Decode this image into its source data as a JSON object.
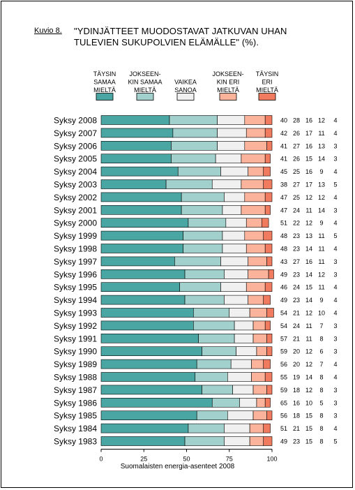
{
  "figure": {
    "label": "Kuvio 8.",
    "title": "\"YDINJÄTTEET MUODOSTAVAT JATKUVAN UHAN\nTULEVIEN SUKUPOLVIEN ELÄMÄLLE\" (%).",
    "source": "Suomalaisten energia-asenteet 2008"
  },
  "chart_data": {
    "type": "bar",
    "orientation": "horizontal",
    "stacked": true,
    "categories": [
      "Syksy 2008",
      "Syksy 2007",
      "Syksy 2006",
      "Syksy 2005",
      "Syksy 2004",
      "Syksy 2003",
      "Syksy 2002",
      "Syksy 2001",
      "Syksy 2000",
      "Syksy 1999",
      "Syksy 1998",
      "Syksy 1997",
      "Syksy 1996",
      "Syksy 1995",
      "Syksy 1994",
      "Syksy 1993",
      "Syksy 1992",
      "Syksy 1991",
      "Syksy 1990",
      "Syksy 1989",
      "Syksy 1988",
      "Syksy 1987",
      "Syksy 1986",
      "Syksy 1985",
      "Syksy 1984",
      "Syksy 1983"
    ],
    "series": [
      {
        "name": "TÄYSIN SAMAA MIELTÄ",
        "color": "#4aa6a3",
        "values": [
          40,
          42,
          41,
          41,
          45,
          38,
          47,
          47,
          51,
          48,
          48,
          43,
          49,
          46,
          49,
          54,
          54,
          57,
          59,
          56,
          55,
          59,
          65,
          56,
          51,
          49
        ]
      },
      {
        "name": "JOKSEEN-KIN SAMAA MIELTÄ",
        "color": "#a2d1cd",
        "values": [
          28,
          26,
          27,
          26,
          25,
          27,
          25,
          24,
          22,
          23,
          23,
          27,
          23,
          24,
          23,
          21,
          24,
          21,
          20,
          20,
          19,
          18,
          16,
          18,
          21,
          23
        ]
      },
      {
        "name": "VAIKEA SANOA",
        "color": "#f0f0f0",
        "values": [
          16,
          17,
          16,
          15,
          16,
          17,
          12,
          11,
          12,
          13,
          14,
          16,
          14,
          15,
          14,
          12,
          11,
          11,
          12,
          12,
          14,
          12,
          10,
          15,
          15,
          15
        ]
      },
      {
        "name": "JOKSEEN-KIN ERI MIELTÄ",
        "color": "#fbb39b",
        "values": [
          12,
          11,
          13,
          14,
          9,
          13,
          12,
          14,
          9,
          11,
          11,
          11,
          12,
          11,
          9,
          10,
          7,
          8,
          6,
          7,
          8,
          8,
          5,
          8,
          8,
          8
        ]
      },
      {
        "name": "TÄYSIN ERI MIELTÄ",
        "color": "#f07b5f",
        "values": [
          4,
          4,
          3,
          3,
          4,
          5,
          4,
          3,
          4,
          5,
          4,
          3,
          3,
          4,
          4,
          4,
          3,
          3,
          3,
          4,
          4,
          3,
          3,
          3,
          4,
          5
        ]
      }
    ],
    "xlim": [
      0,
      100
    ],
    "xticks": [
      0,
      25,
      50,
      75,
      100
    ],
    "legend_position": "top",
    "show_value_columns": true,
    "grid": false
  }
}
